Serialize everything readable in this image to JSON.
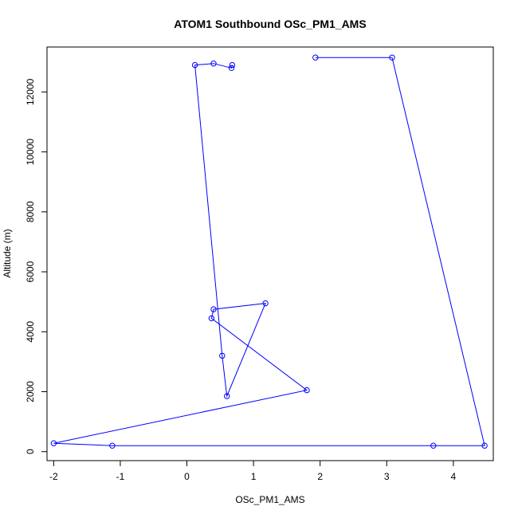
{
  "chart_data": {
    "type": "line",
    "title": "ATOM1 Southbound OSc_PM1_AMS",
    "xlabel": "OSc_PM1_AMS",
    "ylabel": "Altitude (m)",
    "xlim": [
      -2.1,
      4.6
    ],
    "ylim": [
      -300,
      13500
    ],
    "x_ticks": [
      -2,
      -1,
      0,
      1,
      2,
      3,
      4
    ],
    "y_ticks": [
      0,
      2000,
      4000,
      6000,
      8000,
      10000,
      12000
    ],
    "series": [
      {
        "color": "#0000ff",
        "marker": "open-circle",
        "points": [
          {
            "x": 1.93,
            "y": 13150
          },
          {
            "x": 3.08,
            "y": 13150
          },
          {
            "x": 4.47,
            "y": 200
          },
          {
            "x": 3.7,
            "y": 200
          },
          {
            "x": -1.12,
            "y": 200
          },
          {
            "x": -2.0,
            "y": 280
          },
          {
            "x": 1.8,
            "y": 2050
          },
          {
            "x": 0.37,
            "y": 4450
          },
          {
            "x": 0.4,
            "y": 4750
          },
          {
            "x": 1.18,
            "y": 4950
          },
          {
            "x": 0.6,
            "y": 1850
          },
          {
            "x": 0.53,
            "y": 3200
          },
          {
            "x": 0.12,
            "y": 12900
          },
          {
            "x": 0.4,
            "y": 12950
          },
          {
            "x": 0.67,
            "y": 12800
          },
          {
            "x": 0.68,
            "y": 12900
          }
        ]
      }
    ]
  }
}
